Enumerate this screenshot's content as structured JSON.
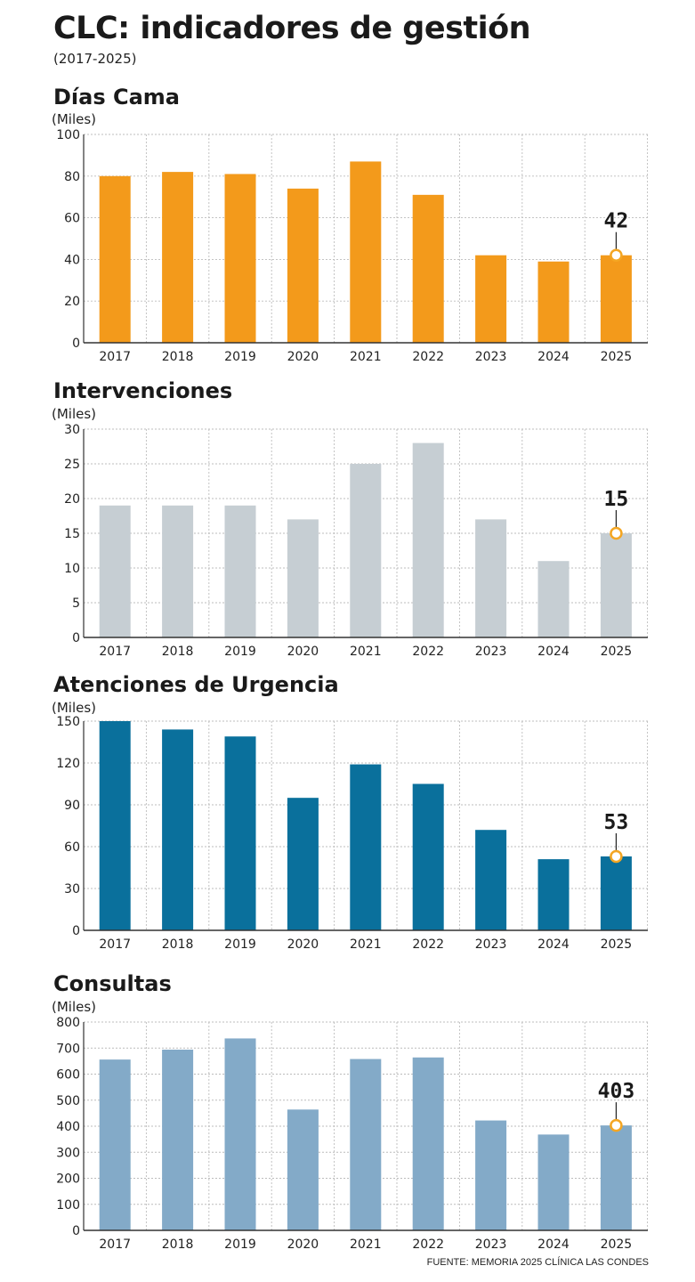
{
  "title": "CLC: indicadores de gestión",
  "subtitle": "(2017-2025)",
  "source": "FUENTE: MEMORIA 2025 CLÍNICA LAS CONDES",
  "colors": {
    "dias_cama": "#f39a1b",
    "intervenciones": "#c6ced3",
    "urgencia": "#0a709c",
    "consultas": "#83aac8",
    "marker": "#f4a623",
    "grid": "#bcbcbc"
  },
  "chart_data": [
    {
      "type": "bar",
      "title": "Días Cama",
      "unit": "(Miles)",
      "categories": [
        "2017",
        "2018",
        "2019",
        "2020",
        "2021",
        "2022",
        "2023",
        "2024",
        "2025"
      ],
      "values": [
        80,
        82,
        81,
        74,
        87,
        71,
        42,
        39,
        42
      ],
      "ylim": [
        0,
        100
      ],
      "yticks": [
        0,
        20,
        40,
        60,
        80,
        100
      ],
      "grid": true,
      "color": "#f39a1b",
      "callout": {
        "category": "2025",
        "label": "42"
      }
    },
    {
      "type": "bar",
      "title": "Intervenciones",
      "unit": "(Miles)",
      "categories": [
        "2017",
        "2018",
        "2019",
        "2020",
        "2021",
        "2022",
        "2023",
        "2024",
        "2025"
      ],
      "values": [
        19,
        19,
        19,
        17,
        25,
        28,
        17,
        11,
        15
      ],
      "ylim": [
        0,
        30
      ],
      "yticks": [
        0,
        5,
        10,
        15,
        20,
        25,
        30
      ],
      "grid": true,
      "color": "#c6ced3",
      "callout": {
        "category": "2025",
        "label": "15"
      }
    },
    {
      "type": "bar",
      "title": "Atenciones de Urgencia",
      "unit": "(Miles)",
      "categories": [
        "2017",
        "2018",
        "2019",
        "2020",
        "2021",
        "2022",
        "2023",
        "2024",
        "2025"
      ],
      "values": [
        150,
        144,
        139,
        95,
        119,
        105,
        72,
        51,
        53
      ],
      "ylim": [
        0,
        150
      ],
      "yticks": [
        0,
        30,
        60,
        90,
        120,
        150
      ],
      "grid": true,
      "color": "#0a709c",
      "callout": {
        "category": "2025",
        "label": "53"
      }
    },
    {
      "type": "bar",
      "title": "Consultas",
      "unit": "(Miles)",
      "categories": [
        "2017",
        "2018",
        "2019",
        "2020",
        "2021",
        "2022",
        "2023",
        "2024",
        "2025"
      ],
      "values": [
        656,
        694,
        737,
        464,
        658,
        664,
        422,
        368,
        403
      ],
      "ylim": [
        0,
        800
      ],
      "yticks": [
        0,
        100,
        200,
        300,
        400,
        500,
        600,
        700,
        800
      ],
      "grid": true,
      "color": "#83aac8",
      "callout": {
        "category": "2025",
        "label": "403"
      }
    }
  ]
}
